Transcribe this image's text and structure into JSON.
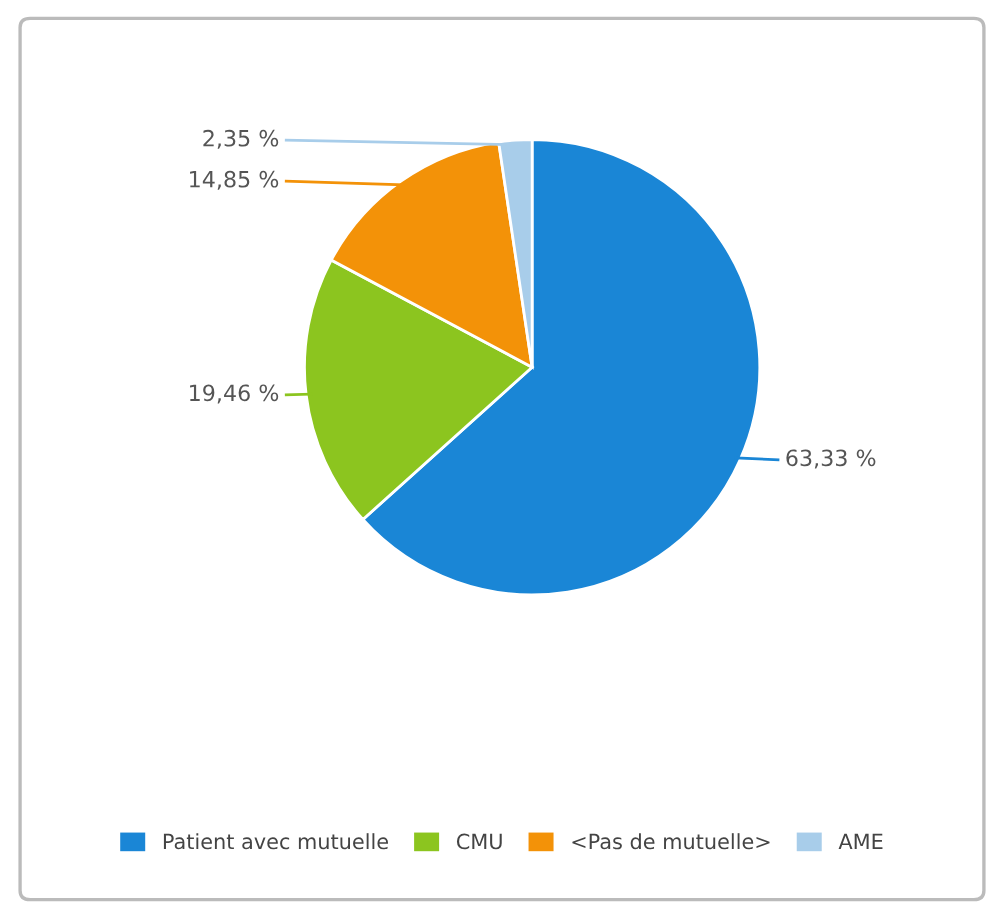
{
  "chart_data": {
    "type": "pie",
    "categories": [
      "Patient avec mutuelle",
      "CMU",
      "<Pas de mutuelle>",
      "AME"
    ],
    "values": [
      63.33,
      19.46,
      14.85,
      2.35
    ],
    "colors": [
      "#1a86d6",
      "#8cc51f",
      "#f39208",
      "#a8cdea"
    ],
    "value_labels": [
      "63,33 %",
      "19,46 %",
      "14,85 %",
      "2,35 %"
    ],
    "legend": "bottom"
  }
}
